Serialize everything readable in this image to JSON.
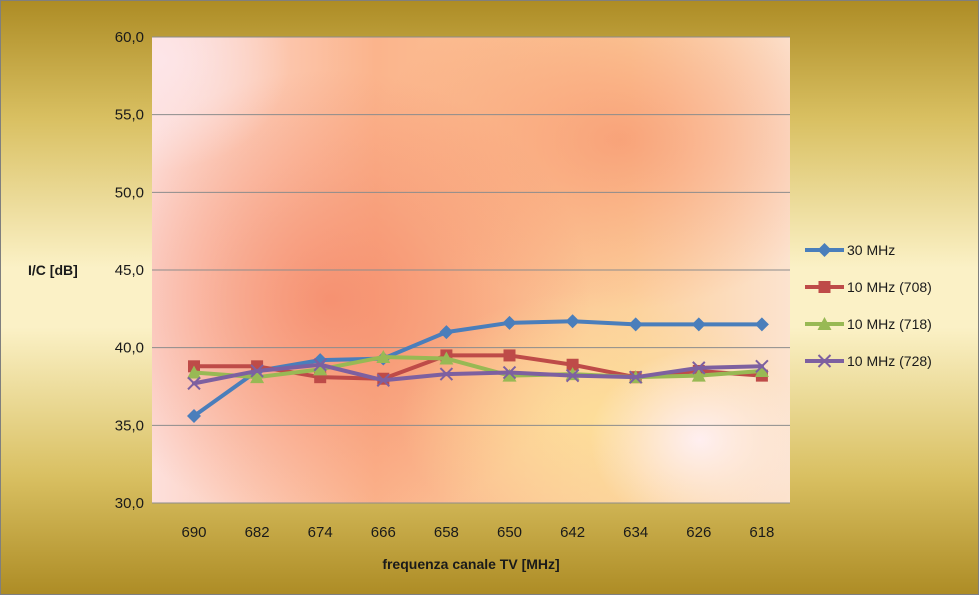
{
  "chart_data": {
    "type": "line",
    "title": "",
    "xlabel": "frequenza canale TV [MHz]",
    "ylabel": "I/C [dB]",
    "categories": [
      "690",
      "682",
      "674",
      "666",
      "658",
      "650",
      "642",
      "634",
      "626",
      "618"
    ],
    "y_ticks": [
      "30,0",
      "35,0",
      "40,0",
      "45,0",
      "50,0",
      "55,0",
      "60,0"
    ],
    "ylim": [
      30,
      60
    ],
    "grid": true,
    "legend_position": "right",
    "series": [
      {
        "name": "30 MHz",
        "color": "#4a7ebb",
        "marker": "diamond",
        "values": [
          35.6,
          38.5,
          39.2,
          39.3,
          41.0,
          41.6,
          41.7,
          41.5,
          41.5,
          41.5
        ]
      },
      {
        "name": "10 MHz (708)",
        "color": "#be4b48",
        "marker": "square",
        "values": [
          38.8,
          38.8,
          38.1,
          38.0,
          39.5,
          39.5,
          38.9,
          38.1,
          38.5,
          38.2
        ]
      },
      {
        "name": "10 MHz (718)",
        "color": "#98b954",
        "marker": "triangle",
        "values": [
          38.4,
          38.1,
          38.6,
          39.4,
          39.3,
          38.2,
          38.3,
          38.1,
          38.2,
          38.5
        ]
      },
      {
        "name": "10 MHz (728)",
        "color": "#7d60a0",
        "marker": "x",
        "values": [
          37.7,
          38.5,
          38.9,
          37.9,
          38.3,
          38.4,
          38.2,
          38.1,
          38.7,
          38.8
        ]
      }
    ]
  }
}
